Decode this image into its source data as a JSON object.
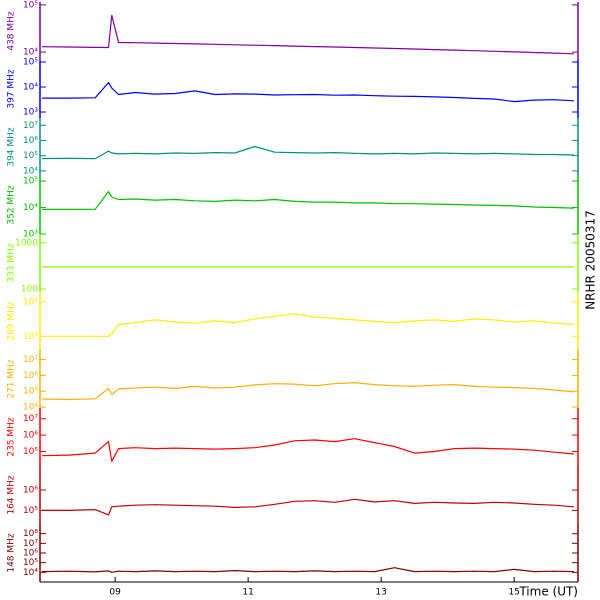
{
  "annotation": "NRHR 20050317",
  "chart_data": [
    {
      "type": "line",
      "y_label": "438 MHz",
      "color": "#8000a0",
      "log_y": true,
      "xlim": [
        7.87,
        15.96
      ],
      "ylim": [
        6800,
        115000
      ],
      "yticks": [
        {
          "value": 10000,
          "label": "10⁴"
        },
        {
          "value": 100000,
          "label": "10⁵"
        }
      ],
      "x": [
        7.9,
        8.3,
        8.7,
        8.9,
        8.95,
        9.05,
        9.3,
        9.6,
        9.9,
        10.2,
        10.5,
        10.8,
        11.1,
        11.4,
        11.7,
        12.0,
        12.3,
        12.6,
        12.9,
        13.2,
        13.5,
        13.8,
        14.1,
        14.4,
        14.7,
        15.0,
        15.3,
        15.6,
        15.9
      ],
      "values": [
        13000,
        12800,
        12600,
        12500,
        60000,
        16000,
        15800,
        15500,
        15200,
        14900,
        14600,
        14300,
        14000,
        13700,
        13400,
        13100,
        12800,
        12500,
        12200,
        11900,
        11600,
        11300,
        11000,
        10700,
        10400,
        10100,
        9800,
        9500,
        9200
      ]
    },
    {
      "type": "line",
      "y_label": "397 MHz",
      "color": "#0000ff",
      "log_y": true,
      "xlim": [
        7.87,
        15.96
      ],
      "ylim": [
        575,
        120000
      ],
      "yticks": [
        {
          "value": 1000,
          "label": "10³"
        },
        {
          "value": 10000,
          "label": "10⁴"
        },
        {
          "value": 100000,
          "label": "10⁵"
        }
      ],
      "x": [
        7.9,
        8.3,
        8.7,
        8.9,
        8.95,
        9.05,
        9.3,
        9.6,
        9.9,
        10.2,
        10.5,
        10.8,
        11.1,
        11.4,
        11.7,
        12.0,
        12.3,
        12.6,
        12.9,
        13.2,
        13.5,
        13.8,
        14.1,
        14.4,
        14.7,
        15.0,
        15.3,
        15.6,
        15.9
      ],
      "values": [
        3600,
        3600,
        3700,
        15000,
        9000,
        5000,
        6000,
        5200,
        5500,
        7000,
        5000,
        5300,
        5200,
        4800,
        4900,
        5000,
        4700,
        4800,
        4500,
        4300,
        4200,
        4000,
        3800,
        3500,
        3300,
        2600,
        3000,
        3100,
        2800
      ]
    },
    {
      "type": "line",
      "y_label": "394 MHz",
      "color": "#009080",
      "log_y": true,
      "xlim": [
        7.87,
        15.96
      ],
      "ylim": [
        4600,
        30000000
      ],
      "yticks": [
        {
          "value": 10000,
          "label": "10⁴"
        },
        {
          "value": 100000,
          "label": "10⁵"
        },
        {
          "value": 1000000,
          "label": "10⁶"
        },
        {
          "value": 10000000,
          "label": "10⁷"
        }
      ],
      "x": [
        7.9,
        8.3,
        8.7,
        8.9,
        8.95,
        9.05,
        9.3,
        9.6,
        9.9,
        10.2,
        10.5,
        10.8,
        11.1,
        11.4,
        11.7,
        12.0,
        12.3,
        12.6,
        12.9,
        13.2,
        13.5,
        13.8,
        14.1,
        14.4,
        14.7,
        15.0,
        15.3,
        15.6,
        15.9
      ],
      "values": [
        65000,
        66000,
        64000,
        200000,
        150000,
        130000,
        140000,
        130000,
        150000,
        140000,
        160000,
        150000,
        400000,
        170000,
        160000,
        150000,
        160000,
        140000,
        130000,
        140000,
        130000,
        150000,
        140000,
        130000,
        140000,
        130000,
        120000,
        120000,
        110000
      ]
    },
    {
      "type": "line",
      "y_label": "352 MHz",
      "color": "#00c000",
      "log_y": true,
      "xlim": [
        7.87,
        15.96
      ],
      "ylim": [
        1000,
        155000
      ],
      "yticks": [
        {
          "value": 1000,
          "label": "10³"
        },
        {
          "value": 10000,
          "label": "10⁴"
        },
        {
          "value": 100000,
          "label": "10⁵"
        }
      ],
      "x": [
        7.9,
        8.3,
        8.7,
        8.9,
        8.95,
        9.05,
        9.3,
        9.6,
        9.9,
        10.2,
        10.5,
        10.8,
        11.1,
        11.4,
        11.7,
        12.0,
        12.3,
        12.6,
        12.9,
        13.2,
        13.5,
        13.8,
        14.1,
        14.4,
        14.7,
        15.0,
        15.3,
        15.6,
        15.9
      ],
      "values": [
        8500,
        8500,
        8600,
        40000,
        25000,
        20000,
        21000,
        19000,
        20000,
        18000,
        17000,
        19000,
        18000,
        20000,
        17000,
        16000,
        16000,
        15000,
        15000,
        14000,
        14000,
        13500,
        13000,
        12500,
        12000,
        11500,
        10500,
        10000,
        9500
      ]
    },
    {
      "type": "line",
      "y_label": "333 MHz",
      "color": "#80ff00",
      "log_y": true,
      "xlim": [
        7.87,
        15.96
      ],
      "ylim": [
        86,
        1550
      ],
      "yticks": [
        100,
        1000
      ],
      "x": [
        7.9,
        8.3,
        8.7,
        8.9,
        8.95,
        9.05,
        9.3,
        9.6,
        9.9,
        10.2,
        10.5,
        10.8,
        11.1,
        11.4,
        11.7,
        12.0,
        12.3,
        12.6,
        12.9,
        13.2,
        13.5,
        13.8,
        14.1,
        14.4,
        14.7,
        15.0,
        15.3,
        15.6,
        15.9
      ],
      "values": [
        300,
        300,
        300,
        300,
        300,
        300,
        300,
        300,
        300,
        300,
        300,
        300,
        300,
        300,
        300,
        300,
        300,
        300,
        300,
        300,
        300,
        300,
        300,
        300,
        300,
        300,
        300,
        300,
        300
      ]
    },
    {
      "type": "line",
      "y_label": "289 MHz",
      "color": "#ffee00",
      "log_y": true,
      "xlim": [
        7.87,
        15.96
      ],
      "ylim": [
        4000,
        193000
      ],
      "yticks": [
        {
          "value": 10000,
          "label": "10⁴"
        },
        {
          "value": 100000,
          "label": "10⁵"
        }
      ],
      "x": [
        7.9,
        8.3,
        8.7,
        8.9,
        8.95,
        9.05,
        9.3,
        9.6,
        9.9,
        10.2,
        10.5,
        10.8,
        11.1,
        11.4,
        11.7,
        12.0,
        12.3,
        12.6,
        12.9,
        13.2,
        13.5,
        13.8,
        14.1,
        14.4,
        14.7,
        15.0,
        15.3,
        15.6,
        15.9
      ],
      "values": [
        10000,
        10000,
        10000,
        10000,
        12000,
        22000,
        25000,
        30000,
        26000,
        24000,
        28000,
        25000,
        32000,
        38000,
        45000,
        36000,
        33000,
        30000,
        27000,
        25000,
        28000,
        30000,
        27000,
        32000,
        30000,
        26000,
        28000,
        24000,
        22000
      ]
    },
    {
      "type": "line",
      "y_label": "271 MHz",
      "color": "#ffb000",
      "log_y": true,
      "xlim": [
        7.87,
        15.96
      ],
      "ylim": [
        8700,
        40000000
      ],
      "yticks": [
        {
          "value": 10000,
          "label": "10⁴"
        },
        {
          "value": 100000,
          "label": "10⁵"
        },
        {
          "value": 1000000,
          "label": "10⁶"
        },
        {
          "value": 10000000,
          "label": "10⁷"
        }
      ],
      "x": [
        7.9,
        8.3,
        8.7,
        8.9,
        8.95,
        9.05,
        9.3,
        9.6,
        9.9,
        10.2,
        10.5,
        10.8,
        11.1,
        11.4,
        11.7,
        12.0,
        12.3,
        12.6,
        12.9,
        13.2,
        13.5,
        13.8,
        14.1,
        14.4,
        14.7,
        15.0,
        15.3,
        15.6,
        15.9
      ],
      "values": [
        32000,
        30000,
        33000,
        150000,
        60000,
        140000,
        160000,
        180000,
        150000,
        200000,
        160000,
        180000,
        250000,
        300000,
        280000,
        220000,
        300000,
        350000,
        260000,
        220000,
        200000,
        240000,
        260000,
        200000,
        180000,
        170000,
        150000,
        120000,
        90000
      ]
    },
    {
      "type": "line",
      "y_label": "235 MHz",
      "color": "#ff0000",
      "log_y": true,
      "xlim": [
        7.87,
        15.96
      ],
      "ylim": [
        13000,
        45000000
      ],
      "yticks": [
        {
          "value": 100000,
          "label": "10⁵"
        },
        {
          "value": 1000000,
          "label": "10⁶"
        },
        {
          "value": 10000000,
          "label": "10⁷"
        }
      ],
      "x": [
        7.9,
        8.3,
        8.7,
        8.9,
        8.95,
        9.05,
        9.3,
        9.6,
        9.9,
        10.2,
        10.5,
        10.8,
        11.1,
        11.4,
        11.7,
        12.0,
        12.3,
        12.6,
        12.9,
        13.2,
        13.5,
        13.8,
        14.1,
        14.4,
        14.7,
        15.0,
        15.3,
        15.6,
        15.9
      ],
      "values": [
        55000,
        60000,
        80000,
        400000,
        25000,
        150000,
        170000,
        150000,
        160000,
        150000,
        140000,
        150000,
        170000,
        250000,
        450000,
        500000,
        400000,
        600000,
        350000,
        200000,
        80000,
        100000,
        150000,
        160000,
        150000,
        140000,
        120000,
        90000,
        70000
      ]
    },
    {
      "type": "line",
      "y_label": "164 MHz",
      "color": "#c00000",
      "log_y": true,
      "xlim": [
        7.87,
        15.96
      ],
      "ylim": [
        21600,
        15000000
      ],
      "yticks": [
        {
          "value": 100000,
          "label": "10⁵"
        },
        {
          "value": 1000000,
          "label": "10⁶"
        }
      ],
      "x": [
        7.9,
        8.3,
        8.7,
        8.9,
        8.95,
        9.05,
        9.3,
        9.6,
        9.9,
        10.2,
        10.5,
        10.8,
        11.1,
        11.4,
        11.7,
        12.0,
        12.3,
        12.6,
        12.9,
        13.2,
        13.5,
        13.8,
        14.1,
        14.4,
        14.7,
        15.0,
        15.3,
        15.6,
        15.9
      ],
      "values": [
        100000,
        100000,
        110000,
        60000,
        150000,
        160000,
        180000,
        190000,
        180000,
        170000,
        160000,
        140000,
        150000,
        200000,
        280000,
        300000,
        250000,
        350000,
        260000,
        300000,
        220000,
        250000,
        230000,
        220000,
        250000,
        230000,
        200000,
        180000,
        150000
      ]
    },
    {
      "type": "line",
      "y_label": "148 MHz",
      "color": "#800000",
      "log_y": true,
      "xlim": [
        7.87,
        15.96
      ],
      "ylim": [
        1000,
        1000000000
      ],
      "yticks": [
        {
          "value": 10000,
          "label": "10⁴"
        },
        {
          "value": 100000,
          "label": "10⁵"
        },
        {
          "value": 1000000,
          "label": "10⁶"
        },
        {
          "value": 10000000,
          "label": "10⁷"
        },
        {
          "value": 100000000,
          "label": "10⁸"
        }
      ],
      "xticks": [
        {
          "value": 9,
          "label": "09"
        },
        {
          "value": 11,
          "label": "11"
        },
        {
          "value": 13,
          "label": "13"
        },
        {
          "value": 15,
          "label": "15"
        }
      ],
      "x_label": "Time (UT)",
      "x": [
        7.9,
        8.3,
        8.7,
        8.9,
        8.95,
        9.05,
        9.3,
        9.6,
        9.9,
        10.2,
        10.5,
        10.8,
        11.1,
        11.4,
        11.7,
        12.0,
        12.3,
        12.6,
        12.9,
        13.2,
        13.5,
        13.8,
        14.1,
        14.4,
        14.7,
        15.0,
        15.3,
        15.6,
        15.9
      ],
      "values": [
        12000,
        13000,
        11000,
        14000,
        10000,
        13000,
        12000,
        14000,
        12000,
        13000,
        12000,
        15000,
        12000,
        13000,
        12000,
        14000,
        12000,
        13000,
        12000,
        30000,
        12000,
        13000,
        12000,
        13000,
        12000,
        20000,
        12000,
        13000,
        12000
      ]
    }
  ]
}
